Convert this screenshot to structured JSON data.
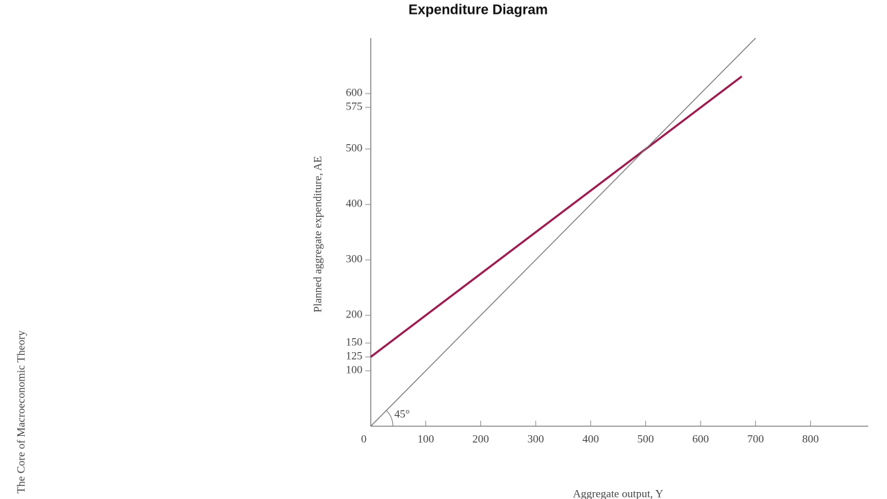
{
  "chart_data": {
    "type": "line",
    "title": "Expenditure Diagram",
    "side_text": "The Core of Macroeconomic Theory",
    "x_label": "Aggregate output, Y",
    "y_label": "Planned aggregate expenditure, AE",
    "annotation": "45°",
    "xlim": [
      0,
      900
    ],
    "ylim": [
      0,
      700
    ],
    "xticks": [
      0,
      100,
      200,
      300,
      400,
      500,
      600,
      700,
      800
    ],
    "yticks": [
      100,
      125,
      150,
      200,
      300,
      400,
      500,
      575,
      600
    ],
    "series": [
      {
        "color": "#9b1b4f",
        "x": [
          0,
          675
        ],
        "values": [
          125,
          631
        ]
      },
      {
        "color": "#7a7a7a",
        "x": [
          0,
          700
        ],
        "values": [
          0,
          700
        ]
      }
    ]
  }
}
